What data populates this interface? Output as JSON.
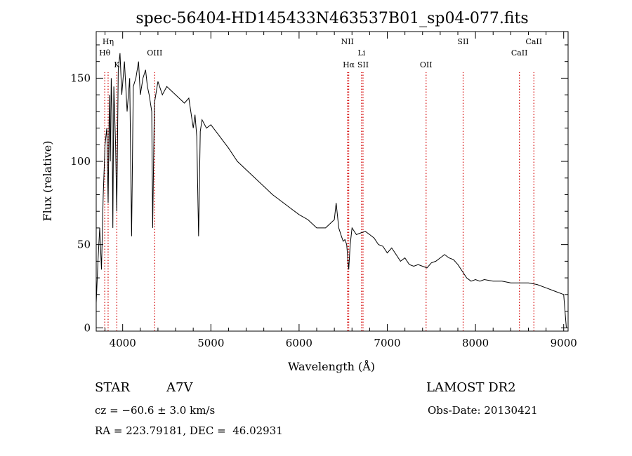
{
  "chart_data": {
    "type": "line",
    "title": "spec-56404-HD145433N463537B01_sp04-077.fits",
    "xlabel": "Wavelength (Å)",
    "ylabel": "Flux (relative)",
    "xlim": [
      3700,
      9050
    ],
    "ylim": [
      -2,
      178
    ],
    "xticks": [
      4000,
      5000,
      6000,
      7000,
      8000,
      9000
    ],
    "yticks": [
      0,
      50,
      100,
      150
    ],
    "grid": false,
    "series": [
      {
        "x": [
          3700,
          3720,
          3740,
          3760,
          3780,
          3800,
          3820,
          3835,
          3850,
          3860,
          3870,
          3880,
          3889,
          3900,
          3920,
          3933,
          3950,
          3970,
          3990,
          4020,
          4050,
          4080,
          4101,
          4120,
          4150,
          4180,
          4200,
          4230,
          4260,
          4280,
          4300,
          4330,
          4340,
          4360,
          4400,
          4450,
          4500,
          4600,
          4700,
          4750,
          4800,
          4820,
          4840,
          4861,
          4880,
          4900,
          4950,
          5000,
          5100,
          5200,
          5300,
          5400,
          5500,
          5600,
          5700,
          5800,
          5900,
          6000,
          6100,
          6200,
          6300,
          6400,
          6420,
          6450,
          6480,
          6500,
          6520,
          6540,
          6563,
          6580,
          6600,
          6650,
          6700,
          6750,
          6800,
          6850,
          6900,
          6950,
          7000,
          7050,
          7100,
          7150,
          7200,
          7250,
          7300,
          7350,
          7400,
          7450,
          7500,
          7550,
          7600,
          7650,
          7700,
          7750,
          7800,
          7850,
          7900,
          7950,
          8000,
          8050,
          8100,
          8200,
          8300,
          8400,
          8500,
          8600,
          8700,
          8800,
          8900,
          9000,
          9030
        ],
        "values": [
          15,
          40,
          60,
          35,
          80,
          110,
          120,
          75,
          140,
          100,
          150,
          128,
          60,
          145,
          110,
          70,
          155,
          165,
          140,
          160,
          130,
          150,
          55,
          145,
          150,
          160,
          140,
          150,
          155,
          145,
          140,
          130,
          60,
          135,
          148,
          140,
          145,
          140,
          135,
          138,
          120,
          128,
          115,
          55,
          118,
          125,
          120,
          122,
          115,
          108,
          100,
          95,
          90,
          85,
          80,
          76,
          72,
          68,
          65,
          60,
          60,
          65,
          75,
          60,
          55,
          52,
          53,
          50,
          35,
          50,
          60,
          56,
          57,
          58,
          56,
          54,
          50,
          49,
          45,
          48,
          44,
          40,
          42,
          38,
          37,
          38,
          37,
          36,
          39,
          40,
          42,
          44,
          42,
          41,
          38,
          34,
          30,
          28,
          29,
          28,
          29,
          28,
          28,
          27,
          27,
          27,
          26,
          24,
          22,
          20,
          0
        ]
      }
    ],
    "annotations": [
      {
        "label": "Hη",
        "x": 3835,
        "row": 1
      },
      {
        "label": "Hθ",
        "x": 3797,
        "row": 2
      },
      {
        "label": "K",
        "x": 3934,
        "row": 3
      },
      {
        "label": "OIII",
        "x": 4363,
        "row": 2
      },
      {
        "label": "NII",
        "x": 6548,
        "row": 1
      },
      {
        "label": "Li",
        "x": 6708,
        "row": 2
      },
      {
        "label": "Hα",
        "x": 6563,
        "row": 3
      },
      {
        "label": "SII",
        "x": 6725,
        "row": 3
      },
      {
        "label": "OII",
        "x": 7440,
        "row": 3
      },
      {
        "label": "SII",
        "x": 7860,
        "row": 1
      },
      {
        "label": "CaII",
        "x": 8498,
        "row": 2
      },
      {
        "label": "CaII",
        "x": 8662,
        "row": 1
      }
    ]
  },
  "info": {
    "object_type": "STAR",
    "subclass": "A7V",
    "survey": "LAMOST DR2",
    "cz": "cz = −60.6 ± 3.0 km/s",
    "obs_date": "Obs-Date: 20130421",
    "coords": "RA = 223.79181, DEC =  46.02931"
  }
}
